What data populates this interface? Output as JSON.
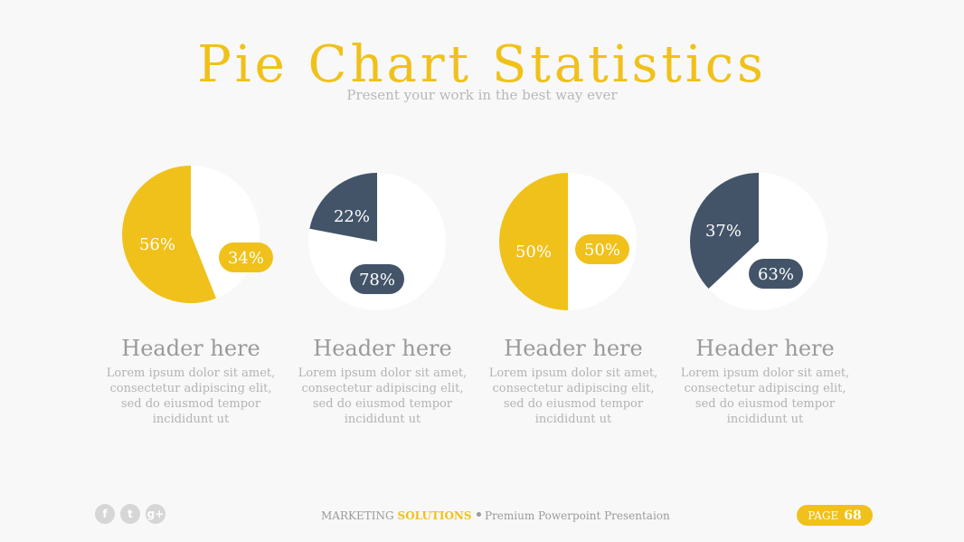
{
  "title": "Pie Chart Statistics",
  "subtitle": "Present your work in the best way ever",
  "colors": {
    "yellow": "#f0c11a",
    "navy": "#435469",
    "white": "#ffffff",
    "gray_text": "#9a9a9a"
  },
  "chart_data": [
    {
      "type": "pie",
      "slices": [
        {
          "label": "56%",
          "value": 56,
          "color": "#f0c11a"
        },
        {
          "label": "34%",
          "value": 34,
          "color": "#ffffff"
        }
      ]
    },
    {
      "type": "pie",
      "slices": [
        {
          "label": "22%",
          "value": 22,
          "color": "#435469"
        },
        {
          "label": "78%",
          "value": 78,
          "color": "#ffffff"
        }
      ]
    },
    {
      "type": "pie",
      "slices": [
        {
          "label": "50%",
          "value": 50,
          "color": "#f0c11a"
        },
        {
          "label": "50%",
          "value": 50,
          "color": "#ffffff"
        }
      ]
    },
    {
      "type": "pie",
      "slices": [
        {
          "label": "37%",
          "value": 37,
          "color": "#435469"
        },
        {
          "label": "63%",
          "value": 63,
          "color": "#ffffff"
        }
      ]
    }
  ],
  "columns": [
    {
      "header": "Header here",
      "body": "Lorem ipsum dolor sit amet,\nconsectetur adipiscing elit,\nsed do eiusmod tempor\nincididunt ut"
    },
    {
      "header": "Header here",
      "body": "Lorem ipsum dolor sit amet,\nconsectetur adipiscing elit,\nsed do eiusmod tempor\nincididunt ut"
    },
    {
      "header": "Header here",
      "body": "Lorem ipsum dolor sit amet,\nconsectetur adipiscing elit,\nsed do eiusmod tempor\nincididunt ut"
    },
    {
      "header": "Header here",
      "body": "Lorem ipsum dolor sit amet,\nconsectetur adipiscing elit,\nsed do eiusmod tempor\nincididunt ut"
    }
  ],
  "footer": {
    "social": [
      {
        "icon": "facebook-icon",
        "glyph": "f"
      },
      {
        "icon": "twitter-icon",
        "glyph": "t"
      },
      {
        "icon": "google-plus-icon",
        "glyph": "g+"
      }
    ],
    "brand_prefix": "MARKETING",
    "brand_accent": "SOLUTIONS",
    "tagline": "Premium Powerpoint Presentaion",
    "page_label": "PAGE",
    "page_number": "68"
  }
}
